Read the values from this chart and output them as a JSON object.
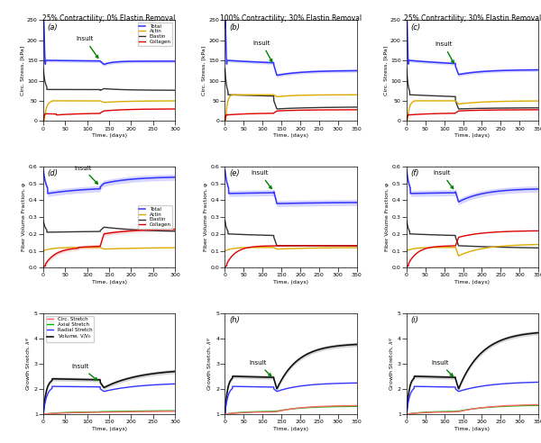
{
  "col_titles": [
    "25% Contractility; 0% Elastin Removal",
    "100% Contractility; 30% Elastin Removal",
    "25% Contractility; 30% Elastin Removal"
  ],
  "row_labels": [
    "(a)",
    "(b)",
    "(c)",
    "(d)",
    "(e)",
    "(f)",
    "(g)",
    "(h)",
    "(i)"
  ],
  "stress_xlims": [
    300,
    350,
    350
  ],
  "fiber_xlims": [
    300,
    350,
    350
  ],
  "growth_xlims": [
    300,
    350,
    350
  ],
  "insult_day": 130,
  "colors": {
    "total": "#3333FF",
    "actin": "#DDAA00",
    "elastin": "#333333",
    "collagen": "#DD0000",
    "circ": "#FF6666",
    "axial": "#00BB00",
    "radial": "#3333FF",
    "volume": "#111111"
  },
  "bg_color": "#FFFFFF"
}
